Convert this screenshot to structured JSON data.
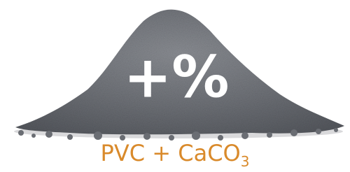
{
  "overlay": {
    "symbol": "+%"
  },
  "caption": {
    "text": "PVC + CaCO",
    "subscript": "3"
  }
}
